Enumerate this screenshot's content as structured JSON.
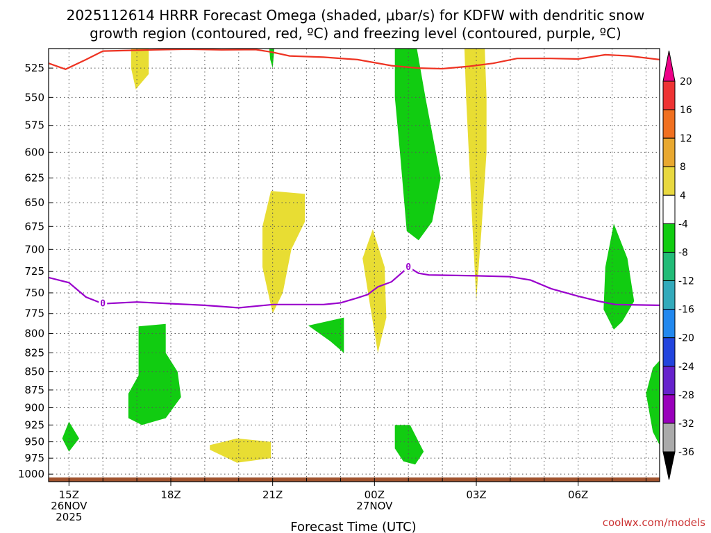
{
  "title": {
    "line1": "2025112614 HRRR Forecast Omega (shaded, μbar/s) for KDFW with dendritic snow",
    "line2": "growth region (contoured, red, ºC) and freezing level (contoured, purple, ºC)"
  },
  "credit": "coolwx.com/models",
  "colors": {
    "dgz_line": "#ee3322",
    "freezing_line": "#9900cc",
    "ground": "#a0522d",
    "credit": "#cc3333"
  },
  "chart_data": {
    "type": "heatmap",
    "xlabel": "Forecast Time (UTC)",
    "ylabel": "",
    "x_range_hours": [
      14.4,
      32.4
    ],
    "y_range_hPa": [
      509,
      1012
    ],
    "y_scale": "log-pressure",
    "grid": true,
    "y_ticks": [
      525,
      550,
      575,
      600,
      625,
      650,
      675,
      700,
      725,
      750,
      775,
      800,
      825,
      850,
      875,
      900,
      925,
      950,
      975,
      1000
    ],
    "x_ticks": [
      {
        "hour": 15,
        "lines": [
          "15Z",
          "26NOV",
          "2025"
        ]
      },
      {
        "hour": 18,
        "lines": [
          "18Z"
        ]
      },
      {
        "hour": 21,
        "lines": [
          "21Z"
        ]
      },
      {
        "hour": 24,
        "lines": [
          "00Z",
          "27NOV"
        ]
      },
      {
        "hour": 27,
        "lines": [
          "03Z"
        ]
      },
      {
        "hour": 30,
        "lines": [
          "06Z"
        ]
      }
    ],
    "colorbar": {
      "levels": [
        20,
        16,
        12,
        8,
        4,
        -4,
        -8,
        -12,
        -16,
        -20,
        -24,
        -28,
        -32,
        -36
      ],
      "colors": [
        "#ee3333",
        "#f07020",
        "#e8a830",
        "#e8d840",
        "#ffffff",
        "#11cc11",
        "#22bb77",
        "#33aabb",
        "#2288ee",
        "#2244dd",
        "#6622cc",
        "#9900bb",
        "#aaaaaa"
      ],
      "top_arrow_color": "#ee0088",
      "bottom_arrow_color": "#000000"
    },
    "omega_regions": [
      {
        "category": "4 to 8",
        "color": "#e8dd33",
        "points": [
          [
            16.83,
            509
          ],
          [
            17.35,
            509
          ],
          [
            17.35,
            530
          ],
          [
            16.97,
            543
          ],
          [
            16.83,
            525
          ]
        ]
      },
      {
        "category": "-4 to -8",
        "color": "#11cc11",
        "points": [
          [
            20.9,
            509
          ],
          [
            21.05,
            509
          ],
          [
            21.0,
            525
          ],
          [
            20.93,
            518
          ]
        ]
      },
      {
        "category": "-4 to -8",
        "color": "#11cc11",
        "points": [
          [
            24.6,
            509
          ],
          [
            25.25,
            509
          ],
          [
            25.5,
            550
          ],
          [
            25.95,
            625
          ],
          [
            25.7,
            670
          ],
          [
            25.3,
            690
          ],
          [
            24.95,
            680
          ],
          [
            24.75,
            600
          ],
          [
            24.6,
            550
          ]
        ]
      },
      {
        "category": "4 to 8",
        "color": "#e8dd33",
        "points": [
          [
            26.65,
            509
          ],
          [
            27.25,
            509
          ],
          [
            27.3,
            550
          ],
          [
            27.3,
            600
          ],
          [
            27.15,
            680
          ],
          [
            27.05,
            730
          ],
          [
            27.0,
            760
          ],
          [
            26.85,
            650
          ],
          [
            26.7,
            550
          ]
        ]
      },
      {
        "category": "4 to 8",
        "color": "#e8dd33",
        "points": [
          [
            20.95,
            638
          ],
          [
            21.95,
            641
          ],
          [
            21.95,
            670
          ],
          [
            21.55,
            700
          ],
          [
            21.3,
            750
          ],
          [
            21.0,
            775
          ],
          [
            20.7,
            720
          ],
          [
            20.7,
            675
          ]
        ]
      },
      {
        "category": "4 to 8",
        "color": "#e8dd33",
        "points": [
          [
            23.95,
            678
          ],
          [
            24.3,
            720
          ],
          [
            24.35,
            780
          ],
          [
            24.1,
            825
          ],
          [
            23.85,
            760
          ],
          [
            23.65,
            710
          ]
        ]
      },
      {
        "category": "-4 to -8",
        "color": "#11cc11",
        "points": [
          [
            22.05,
            790
          ],
          [
            23.1,
            780
          ],
          [
            23.1,
            825
          ],
          [
            22.7,
            810
          ]
        ]
      },
      {
        "category": "-4 to -8",
        "color": "#11cc11",
        "points": [
          [
            17.05,
            791
          ],
          [
            17.85,
            788
          ],
          [
            17.85,
            825
          ],
          [
            18.2,
            850
          ],
          [
            18.3,
            885
          ],
          [
            17.85,
            915
          ],
          [
            17.15,
            925
          ],
          [
            16.75,
            915
          ],
          [
            16.75,
            880
          ],
          [
            17.05,
            855
          ]
        ]
      },
      {
        "category": "-4 to -8",
        "color": "#11cc11",
        "points": [
          [
            31.05,
            672
          ],
          [
            31.45,
            710
          ],
          [
            31.65,
            760
          ],
          [
            31.3,
            785
          ],
          [
            31.05,
            795
          ],
          [
            30.75,
            770
          ],
          [
            30.8,
            720
          ]
        ]
      },
      {
        "category": "-4 to -8",
        "color": "#11cc11",
        "points": [
          [
            32.4,
            835
          ],
          [
            32.4,
            955
          ],
          [
            32.2,
            935
          ],
          [
            32.0,
            880
          ],
          [
            32.2,
            845
          ]
        ]
      },
      {
        "category": "-4 to -8",
        "color": "#11cc11",
        "points": [
          [
            15.0,
            920
          ],
          [
            15.3,
            945
          ],
          [
            15.0,
            965
          ],
          [
            14.8,
            945
          ]
        ]
      },
      {
        "category": "-4 to -8",
        "color": "#11cc11",
        "points": [
          [
            24.6,
            925
          ],
          [
            25.05,
            925
          ],
          [
            25.45,
            965
          ],
          [
            25.2,
            985
          ],
          [
            24.85,
            980
          ],
          [
            24.6,
            960
          ]
        ]
      },
      {
        "category": "4 to 8",
        "color": "#e8dd33",
        "points": [
          [
            19.15,
            955
          ],
          [
            19.95,
            945
          ],
          [
            20.95,
            950
          ],
          [
            20.95,
            975
          ],
          [
            19.95,
            982
          ],
          [
            19.15,
            962
          ]
        ]
      }
    ],
    "dgz_contour": {
      "name": "dendritic snow growth region",
      "color": "#ee3322",
      "points": [
        [
          14.4,
          521
        ],
        [
          14.9,
          526
        ],
        [
          15.5,
          518
        ],
        [
          16.0,
          511
        ],
        [
          17.5,
          510
        ],
        [
          18.5,
          509.5
        ],
        [
          19.5,
          510
        ],
        [
          20.5,
          509.8
        ],
        [
          21.0,
          512
        ],
        [
          21.5,
          515
        ],
        [
          22.5,
          516
        ],
        [
          23.5,
          518
        ],
        [
          24.5,
          523
        ],
        [
          25.3,
          525
        ],
        [
          26.0,
          525.5
        ],
        [
          26.8,
          523.5
        ],
        [
          27.5,
          521
        ],
        [
          28.2,
          517
        ],
        [
          29.2,
          517
        ],
        [
          30.0,
          517.5
        ],
        [
          30.8,
          514
        ],
        [
          31.5,
          515
        ],
        [
          32.4,
          518
        ]
      ]
    },
    "freezing_contour": {
      "name": "freezing level",
      "label": "0",
      "color": "#9900cc",
      "points": [
        [
          14.4,
          732
        ],
        [
          15.0,
          738
        ],
        [
          15.5,
          755
        ],
        [
          16.0,
          763
        ],
        [
          17.0,
          761
        ],
        [
          19.0,
          765
        ],
        [
          20.0,
          768
        ],
        [
          21.0,
          764
        ],
        [
          22.5,
          764
        ],
        [
          23.0,
          762
        ],
        [
          23.5,
          756
        ],
        [
          23.8,
          752
        ],
        [
          24.1,
          743
        ],
        [
          24.5,
          737
        ],
        [
          25.0,
          720
        ],
        [
          25.3,
          727
        ],
        [
          25.6,
          729
        ],
        [
          27.0,
          730
        ],
        [
          28.0,
          731
        ],
        [
          28.6,
          735
        ],
        [
          29.2,
          745
        ],
        [
          30.0,
          754
        ],
        [
          30.6,
          760
        ],
        [
          31.1,
          764
        ],
        [
          32.4,
          765
        ]
      ],
      "label_positions": [
        [
          16.0,
          763
        ],
        [
          25.0,
          720
        ]
      ]
    }
  }
}
